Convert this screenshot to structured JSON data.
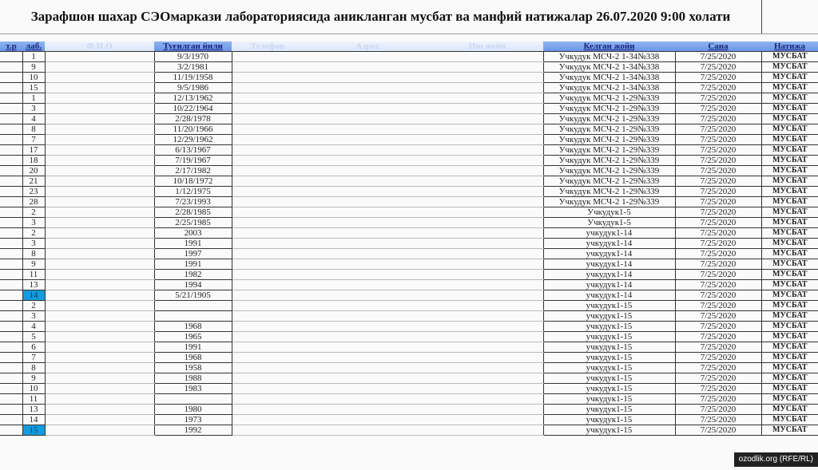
{
  "title": "Зарафшон шахар СЭОмаркази лабораториясида аникланган мусбат ва манфий  натижалар 26.07.2020 9:00 холати",
  "headers": [
    "т.р",
    "лаб.",
    "Ф.И.О",
    "Туғилган йили",
    "Телефон",
    "Адрес",
    "Иш жойи",
    "Келган жойи",
    "Сана",
    "Натижа"
  ],
  "highlight_color": "#139cdc",
  "rows": [
    [
      "1",
      "9/3/1970",
      "Учкудук МСЧ-2  1-34№338"
    ],
    [
      "9",
      "3/2/1981",
      "Учкудук МСЧ-2  1-34№338"
    ],
    [
      "10",
      "11/19/1958",
      "Учкудук МСЧ-2  1-34№338"
    ],
    [
      "15",
      "9/5/1986",
      "Учкудук МСЧ-2  1-34№338"
    ],
    [
      "1",
      "12/13/1962",
      "Учкудук МСЧ-2  1-29№339"
    ],
    [
      "3",
      "10/22/1964",
      "Учкудук МСЧ-2  1-29№339"
    ],
    [
      "4",
      "2/28/1978",
      "Учкудук МСЧ-2  1-29№339"
    ],
    [
      "8",
      "11/20/1966",
      "Учкудук МСЧ-2  1-29№339"
    ],
    [
      "7",
      "12/29/1962",
      "Учкудук МСЧ-2  1-29№339"
    ],
    [
      "17",
      "6/13/1967",
      "Учкудук МСЧ-2  1-29№339"
    ],
    [
      "18",
      "7/19/1967",
      "Учкудук МСЧ-2  1-29№339"
    ],
    [
      "20",
      "2/17/1982",
      "Учкудук МСЧ-2  1-29№339"
    ],
    [
      "21",
      "10/18/1972",
      "Учкудук МСЧ-2  1-29№339"
    ],
    [
      "23",
      "1/12/1975",
      "Учкудук МСЧ-2  1-29№339"
    ],
    [
      "28",
      "7/23/1993",
      "Учкудук МСЧ-2  1-29№339"
    ],
    [
      "2",
      "2/28/1985",
      "Учкудук1-5"
    ],
    [
      "3",
      "2/25/1985",
      "Учкудук1-5"
    ],
    [
      "2",
      "2003",
      "учкудук1-14"
    ],
    [
      "3",
      "1991",
      "учкудук1-14"
    ],
    [
      "8",
      "1997",
      "учкудук1-14"
    ],
    [
      "9",
      "1991",
      "учкудук1-14"
    ],
    [
      "11",
      "1982",
      "учкудук1-14"
    ],
    [
      "13",
      "1994",
      "учкудук1-14"
    ],
    [
      "14",
      "5/21/1905",
      "учкудук1-14",
      true
    ],
    [
      "2",
      "",
      "учкудук1-15"
    ],
    [
      "3",
      "",
      "учкудук1-15"
    ],
    [
      "4",
      "1968",
      "учкудук1-15"
    ],
    [
      "5",
      "1965",
      "учкудук1-15"
    ],
    [
      "6",
      "1991",
      "учкудук1-15"
    ],
    [
      "7",
      "1968",
      "учкудук1-15"
    ],
    [
      "8",
      "1958",
      "учкудук1-15"
    ],
    [
      "9",
      "1988",
      "учкудук1-15"
    ],
    [
      "10",
      "1983",
      "учкудук1-15"
    ],
    [
      "11",
      "",
      "учкудук1-15"
    ],
    [
      "13",
      "1980",
      "учкудук1-15"
    ],
    [
      "14",
      "1973",
      "учкудук1-15"
    ],
    [
      "15",
      "1992",
      "учкудук1-15",
      true
    ]
  ],
  "date": "7/25/2020",
  "result": "МУСБАТ",
  "watermark": "ozodlik.org (RFE/RL)"
}
